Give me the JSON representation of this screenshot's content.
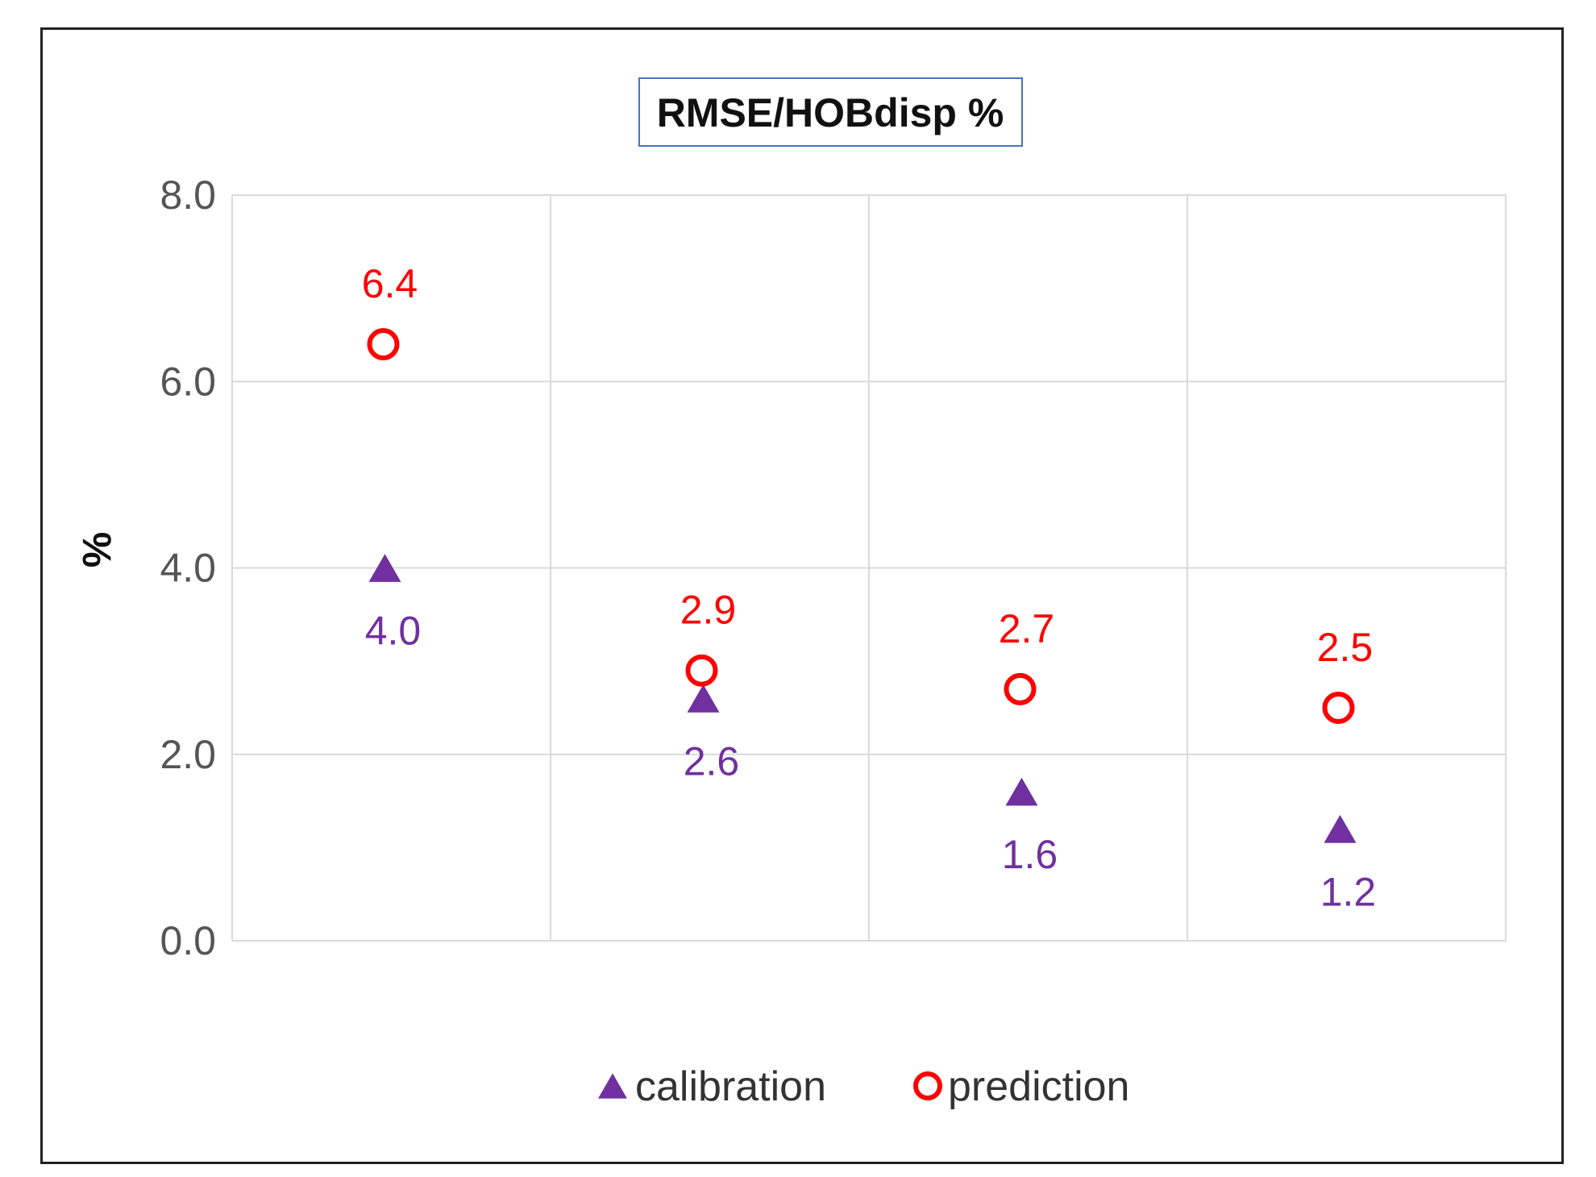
{
  "chart_data": {
    "type": "scatter",
    "title": "RMSE/HOBdisp %",
    "ylabel": "%",
    "xlabel": "",
    "ylim": [
      0,
      8
    ],
    "yticks": [
      "0.0",
      "2.0",
      "4.0",
      "6.0",
      "8.0"
    ],
    "grid": true,
    "legend_position": "bottom",
    "categories": [
      "",
      "",
      "",
      ""
    ],
    "series": [
      {
        "name": "calibration",
        "marker": "triangle",
        "color": "#7030a0",
        "values": [
          4.0,
          2.6,
          1.6,
          1.2
        ],
        "labels": [
          "4.0",
          "2.6",
          "1.6",
          "1.2"
        ]
      },
      {
        "name": "prediction",
        "marker": "open-circle",
        "color": "#ff0000",
        "values": [
          6.4,
          2.9,
          2.7,
          2.5
        ],
        "labels": [
          "6.4",
          "2.9",
          "2.7",
          "2.5"
        ]
      }
    ],
    "colors": {
      "gridline": "#d9d9d9",
      "title_border": "#4472c4"
    }
  }
}
